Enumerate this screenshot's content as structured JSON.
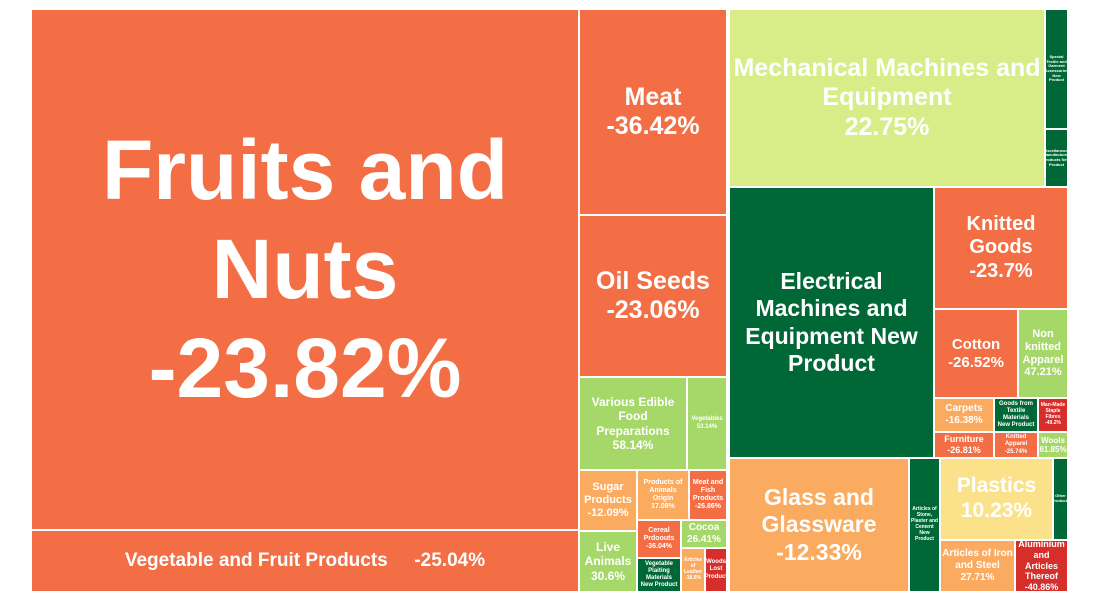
{
  "chart_data": {
    "type": "treemap",
    "value_format": "{name} {change}%",
    "colors": {
      "strong_negative": "#d62e2b",
      "negative": "#f36e45",
      "mild_negative": "#fbab60",
      "slight_positive": "#fbe28a",
      "mild_positive": "#d8ec88",
      "positive": "#a6d869",
      "strong_positive": "#006837"
    },
    "tiles": [
      {
        "name": "Fruits and Nuts",
        "change": -23.82,
        "color": "negative"
      },
      {
        "name": "Vegetable and Fruit Products",
        "change": -25.04,
        "color": "negative"
      },
      {
        "name": "Meat",
        "change": -36.42,
        "color": "negative"
      },
      {
        "name": "Oil Seeds",
        "change": -23.06,
        "color": "negative"
      },
      {
        "name": "Various Edible Food Preparations",
        "change": 58.14,
        "color": "positive"
      },
      {
        "name": "Vegetables",
        "change": 53.14,
        "color": "positive"
      },
      {
        "name": "Sugar Products",
        "change": -12.09,
        "color": "mild_negative"
      },
      {
        "name": "Products of Animals Origin",
        "change": 17.08,
        "color": "mild_negative"
      },
      {
        "name": "Meat and Fish Products",
        "change": -26.86,
        "color": "negative"
      },
      {
        "name": "Cereal Prdoouts",
        "change": -36.04,
        "color": "negative"
      },
      {
        "name": "Cocoa",
        "change": 26.41,
        "color": "positive"
      },
      {
        "name": "Live Animals",
        "change": 30.6,
        "color": "positive"
      },
      {
        "name": "Vegetable Plaiting Materials New Product",
        "change": null,
        "color": "strong_positive"
      },
      {
        "name": "Articles of Leather",
        "change": -18.6,
        "color": "mild_negative"
      },
      {
        "name": "Woods Lost Product",
        "change": null,
        "color": "strong_negative"
      },
      {
        "name": "Mechanical Machines and Equipment",
        "change": 22.75,
        "color": "mild_positive"
      },
      {
        "name": "Special Textile and Garment Accessories New Product",
        "change": null,
        "color": "strong_positive"
      },
      {
        "name": "Miscellaneous Manufactured Products New Product",
        "change": null,
        "color": "strong_positive"
      },
      {
        "name": "Electrical Machines and Equipment New Product",
        "change": null,
        "color": "strong_positive"
      },
      {
        "name": "Knitted Goods",
        "change": -23.7,
        "color": "negative"
      },
      {
        "name": "Cotton",
        "change": -26.52,
        "color": "negative"
      },
      {
        "name": "Non knitted Apparel",
        "change": 47.21,
        "color": "positive"
      },
      {
        "name": "Carpets",
        "change": -16.38,
        "color": "mild_negative"
      },
      {
        "name": "Goods from Textile Materials New Product",
        "change": null,
        "color": "strong_positive"
      },
      {
        "name": "Man-Made Staple Fibres",
        "change": -49.2,
        "color": "strong_negative"
      },
      {
        "name": "Furniture",
        "change": -26.81,
        "color": "negative"
      },
      {
        "name": "Knitted Apparel",
        "change": -25.74,
        "color": "negative"
      },
      {
        "name": "Wools",
        "change": 61.85,
        "color": "positive"
      },
      {
        "name": "Glass and Glassware",
        "change": -12.33,
        "color": "mild_negative"
      },
      {
        "name": "Articles of Stone, Plaster and Cement New Product",
        "change": null,
        "color": "strong_positive"
      },
      {
        "name": "Plastics",
        "change": 10.23,
        "color": "slight_positive"
      },
      {
        "name": "Articles of Iron and Steel",
        "change": 27.71,
        "color": "mild_negative"
      },
      {
        "name": "Aluminium and Articles Thereof",
        "change": -40.86,
        "color": "strong_negative"
      },
      {
        "name": "Other Products",
        "change": null,
        "color": "strong_positive"
      }
    ]
  }
}
